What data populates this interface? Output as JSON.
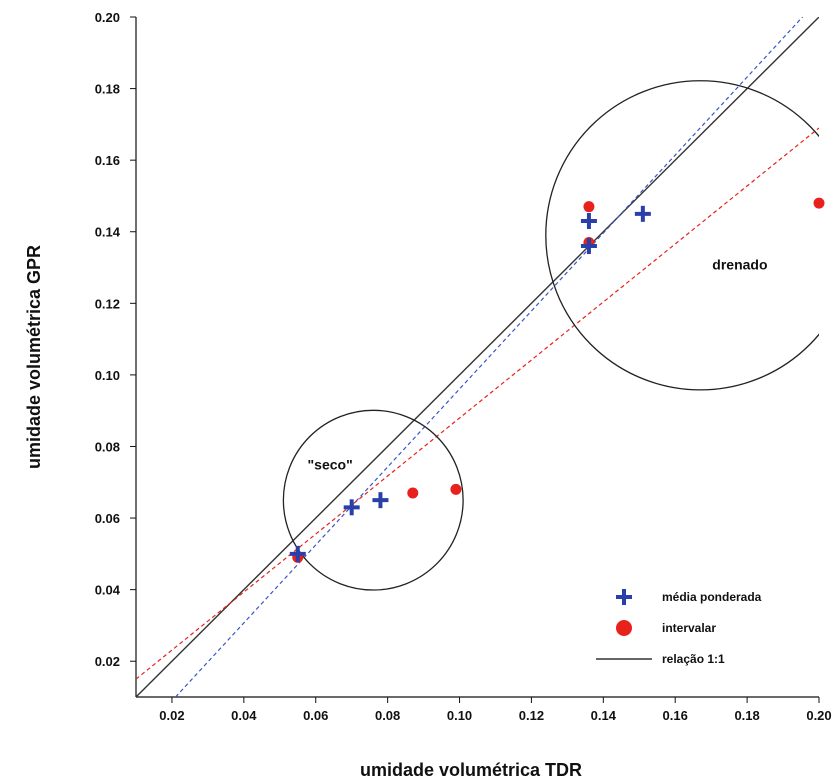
{
  "chart_data": {
    "type": "scatter",
    "title": "",
    "xlabel": "umidade volumétrica TDR",
    "ylabel": "umidade volumétrica GPR",
    "xlim": [
      0.01,
      0.2
    ],
    "ylim": [
      0.01,
      0.2
    ],
    "x_ticks": [
      "0.02",
      "0.04",
      "0.06",
      "0.08",
      "0.10",
      "0.12",
      "0.14",
      "0.16",
      "0.18",
      "0.20"
    ],
    "y_ticks": [
      "0.02",
      "0.04",
      "0.06",
      "0.08",
      "0.10",
      "0.12",
      "0.14",
      "0.16",
      "0.18",
      "0.20"
    ],
    "grid": false,
    "legend_position": "bottom-right",
    "series": [
      {
        "name": "média ponderada",
        "marker": "plus",
        "color": "#2a3fa8",
        "points": [
          {
            "x": 0.055,
            "y": 0.05
          },
          {
            "x": 0.07,
            "y": 0.063
          },
          {
            "x": 0.078,
            "y": 0.065
          },
          {
            "x": 0.136,
            "y": 0.136
          },
          {
            "x": 0.136,
            "y": 0.143
          },
          {
            "x": 0.151,
            "y": 0.145
          }
        ]
      },
      {
        "name": "intervalar",
        "marker": "dot",
        "color": "#e8211c",
        "points": [
          {
            "x": 0.055,
            "y": 0.049
          },
          {
            "x": 0.087,
            "y": 0.067
          },
          {
            "x": 0.099,
            "y": 0.068
          },
          {
            "x": 0.136,
            "y": 0.137
          },
          {
            "x": 0.136,
            "y": 0.147
          },
          {
            "x": 0.2,
            "y": 0.148
          }
        ]
      }
    ],
    "lines": [
      {
        "name": "relação 1:1",
        "style": "solid",
        "color": "#333333",
        "from": [
          0.01,
          0.01
        ],
        "to": [
          0.2,
          0.2
        ]
      },
      {
        "name": "",
        "style": "dashed",
        "color": "#3b55c8",
        "from": [
          0.021,
          0.01
        ],
        "to": [
          0.2,
          0.205
        ]
      },
      {
        "name": "",
        "style": "dashed",
        "color": "#e8211c",
        "from": [
          0.01,
          0.015
        ],
        "to": [
          0.2,
          0.169
        ]
      }
    ],
    "annotations": [
      {
        "text": "\"seco\"",
        "x": 0.064,
        "y": 0.0735
      },
      {
        "text": "drenado",
        "x": 0.178,
        "y": 0.1295
      }
    ],
    "regions": [
      {
        "shape": "circle",
        "label": "\"seco\"",
        "center": [
          0.076,
          0.065
        ],
        "radius": 0.025
      },
      {
        "shape": "circle",
        "label": "drenado",
        "center": [
          0.167,
          0.139
        ],
        "radius": 0.043
      }
    ]
  }
}
